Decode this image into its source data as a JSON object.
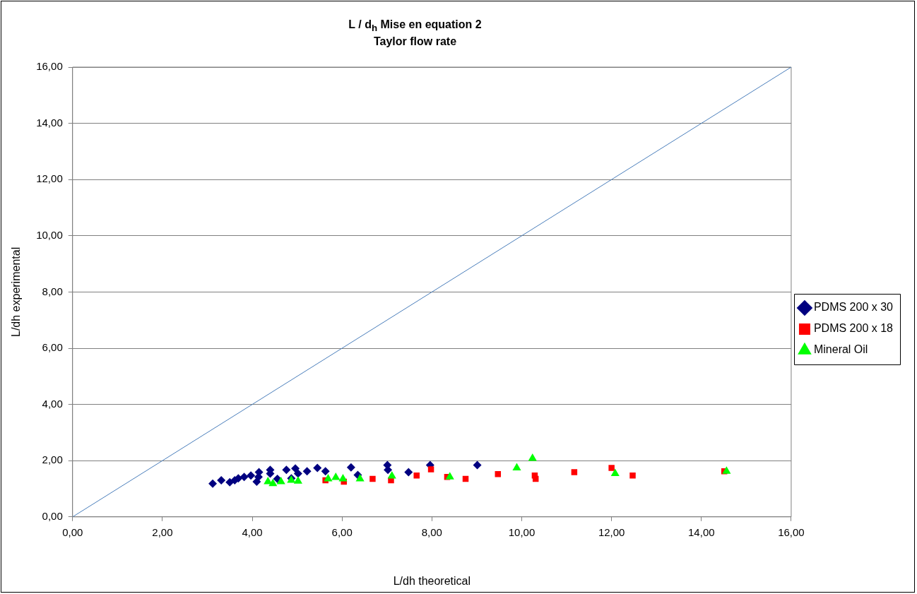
{
  "chart_data": {
    "type": "scatter",
    "title": "L / d$_{h}$  Mise en equation 2",
    "subtitle": "Taylor flow rate",
    "xlabel": "L/dh theoretical",
    "ylabel": "L/dh experimental",
    "xlim": [
      0,
      16
    ],
    "ylim": [
      0,
      16
    ],
    "xticks": [
      {
        "value": 0,
        "label": "0,00"
      },
      {
        "value": 2,
        "label": "2,00"
      },
      {
        "value": 4,
        "label": "4,00"
      },
      {
        "value": 6,
        "label": "6,00"
      },
      {
        "value": 8,
        "label": "8,00"
      },
      {
        "value": 10,
        "label": "10,00"
      },
      {
        "value": 12,
        "label": "12,00"
      },
      {
        "value": 14,
        "label": "14,00"
      },
      {
        "value": 16,
        "label": "16,00"
      }
    ],
    "yticks": [
      {
        "value": 0,
        "label": "0,00"
      },
      {
        "value": 2,
        "label": "2,00"
      },
      {
        "value": 4,
        "label": "4,00"
      },
      {
        "value": 6,
        "label": "6,00"
      },
      {
        "value": 8,
        "label": "8,00"
      },
      {
        "value": 10,
        "label": "10,00"
      },
      {
        "value": 12,
        "label": "12,00"
      },
      {
        "value": 14,
        "label": "14,00"
      },
      {
        "value": 16,
        "label": "16,00"
      }
    ],
    "grid": "y",
    "legend": "right",
    "series": [
      {
        "type": "line",
        "color": "#4a7ebb",
        "marker": "none",
        "x": [
          0,
          16
        ],
        "values": [
          0,
          16
        ]
      },
      {
        "name": "PDMS 200 x 30",
        "color": "#000080",
        "marker": "diamond",
        "x": [
          3.12,
          3.31,
          3.5,
          3.61,
          3.69,
          3.82,
          3.97,
          4.1,
          4.14,
          4.15,
          4.4,
          4.4,
          4.56,
          4.76,
          4.87,
          4.96,
          5.02,
          5.22,
          5.45,
          5.63,
          6.2,
          6.35,
          7.01,
          7.02,
          7.48,
          7.96,
          9.01
        ],
        "values": [
          1.18,
          1.3,
          1.23,
          1.3,
          1.37,
          1.42,
          1.47,
          1.25,
          1.42,
          1.59,
          1.67,
          1.54,
          1.35,
          1.67,
          1.37,
          1.72,
          1.54,
          1.62,
          1.74,
          1.62,
          1.76,
          1.49,
          1.84,
          1.67,
          1.59,
          1.84,
          1.84
        ]
      },
      {
        "name": "PDMS 200 x 18",
        "color": "#ff0000",
        "marker": "square",
        "x": [
          5.63,
          6.04,
          6.68,
          7.09,
          7.66,
          7.98,
          8.34,
          8.75,
          9.47,
          10.29,
          10.31,
          11.17,
          12.0,
          12.47,
          14.51
        ],
        "values": [
          1.3,
          1.25,
          1.35,
          1.3,
          1.47,
          1.69,
          1.42,
          1.35,
          1.52,
          1.47,
          1.35,
          1.59,
          1.74,
          1.47,
          1.62
        ]
      },
      {
        "name": "Mineral Oil",
        "color": "#00ff00",
        "marker": "triangle",
        "x": [
          4.35,
          4.46,
          4.64,
          4.87,
          5.02,
          5.69,
          5.86,
          6.02,
          6.4,
          7.11,
          8.4,
          9.89,
          10.24,
          12.08,
          14.56
        ],
        "values": [
          1.25,
          1.18,
          1.25,
          1.3,
          1.27,
          1.35,
          1.4,
          1.35,
          1.35,
          1.45,
          1.42,
          1.74,
          2.08,
          1.54,
          1.62
        ]
      }
    ]
  }
}
